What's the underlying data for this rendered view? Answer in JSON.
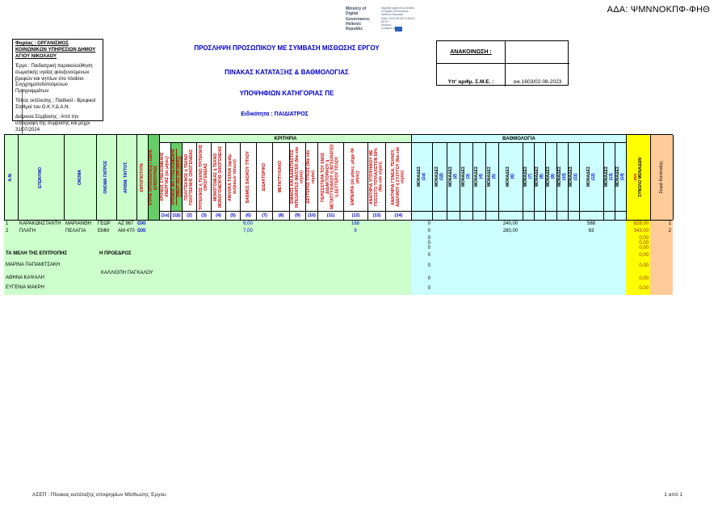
{
  "page": {
    "ada": "ΑΔΑ: ΨΜΝΝΟΚΠΦ-ΦΗΘ"
  },
  "signature": {
    "ministry": [
      "Ministry of Digital",
      "Governance,",
      "Hellenic Republic"
    ],
    "stamp": [
      "Digitally signed by Ministry",
      "of Digital Governance,",
      "Hellenic Republic",
      "Date: 2023.08.08 10:05:43",
      "EEST",
      "Reason:",
      "Location: Athens"
    ]
  },
  "info_box": {
    "heading": "Φορέας :  ΟΡΓΑΝΙΣΜΟΣ ΚΟΙΝΩΝΙΚΩΝ ΥΠΗΡΕΣΙΩΝ ΔΗΜΟΥ ΑΓΙΟΥ ΝΙΚΟΛΑΟΥ",
    "project": "Έργο : Παιδιατρική παρακολούθηση σωματικής υγείας φιλοξενούμενων βρεφών και νηπίων  στο πλαίσιο Συγχρηματοδοτούμενων Προγραμμάτων",
    "place": "Τόπος εκτέλεσης : Παιδικοί - Βρεφικοί Σταθμοί του Ο.Κ.Υ.Δ.Α.Ν.",
    "duration": "Διάρκεια Σύμβασης : Από την υπογραφή της σύμβασης και μέχρι 31/07/2024"
  },
  "titles": {
    "t1": "ΠΡΟΣΛΗΨΗ ΠΡΟΣΩΠΙΚΟΥ ΜΕ ΣΥΜΒΑΣΗ ΜΙΣΘΩΣΗΣ  ΕΡΓΟΥ",
    "t2": "ΠΙΝΑΚΑΣ ΚΑΤΑΤΑΞΗΣ & ΒΑΘΜΟΛΟΓΙΑΣ",
    "t3": "ΥΠΟΨΗΦΙΩΝ ΚΑΤΗΓΟΡΙΑΣ ΠΕ",
    "t4": "Ειδικότητα :  ΠΑΙΔΙΑΤΡΟΣ"
  },
  "announcement": {
    "label": "ΑΝΑΚΟΙΝΩΣΗ :",
    "sme_label": "Υπ' αριθμ. Σ.Μ.Ε. :",
    "sme_value": "οικ.1603/02-08-2023"
  },
  "table": {
    "section_criteria": "ΚΡΙΤΗΡΙΑ",
    "section_scoring": "ΒΑΘΜΟΛΟΓΙΑ",
    "left_columns": [
      {
        "label": "Α.Μ.",
        "red": false,
        "dark": false
      },
      {
        "label": "ΕΠΩΝΥΜΟ",
        "red": false,
        "dark": false
      },
      {
        "label": "ΟΝΟΜΑ",
        "red": false,
        "dark": false
      },
      {
        "label": "ΟΝΟΜΑ ΠΑΤΡΟΣ",
        "red": false,
        "dark": false
      },
      {
        "label": "ΑΡΙΘΜ. ΤΑΥΤΟΤ.",
        "red": false,
        "dark": false
      },
      {
        "label": "ΕΝΤΟΠΙΟΤΗΤΑ",
        "red": true,
        "dark": false
      },
      {
        "label": "ΚΥΡΙΑ ΠΡΟΣΟΝΤΑ(1) / ΣΕΙΡΑ ΕΠΙΚΟΥΡΙΑΣ",
        "red": true,
        "dark": true
      }
    ],
    "criteria_columns": [
      {
        "num": "(1α)",
        "label": "ΧΡΟΝΟΣ ΣΥΝΕΧΟΜΕΝΗΣ ΑΝΕΡΓΙΑΣ (σε μήνες)",
        "dark": false,
        "underline": false
      },
      {
        "num": "(1β)",
        "label": "ΧΡΟΝΟΣ ΜΗ ΣΥΝΕΧΟΜΕΝΗΣ ΑΝΕΡΓΙΑΣ (σε μήνες)",
        "dark": true,
        "underline": true
      },
      {
        "num": "(2)",
        "label": "ΠΟΛΥΤΕΚΝΟΣ ή ΤΕΚΝΟ ΠΟΛΥΤΕΚΝΗΣ ΟΙΚΟΓΕΝΕΙΑΣ",
        "dark": false,
        "underline": false
      },
      {
        "num": "(3)",
        "label": "ΤΡΙΤΕΚΝΟΣ ή ΤΕΚΝΟ ΤΡΙΤΕΚΝΗΣ ΟΙΚΟΓΕΝΕΙΑΣ",
        "dark": false,
        "underline": false
      },
      {
        "num": "(4)",
        "label": "ΜΟΝΟΓΟΝΕΑΣ ή ΤΕΚΝΟ ΜΟΝΟΓΟΝΕΪΚΗΣ ΟΙΚΟΓΕΝΕΙΑΣ",
        "dark": false,
        "underline": false
      },
      {
        "num": "(5)",
        "label": "ΑΝΗΛΙΚΑ ΤΕΚΝΑ (αριθμ. ανήλικων τέκνων)",
        "dark": false,
        "underline": false
      },
      {
        "num": "(6)",
        "label": "ΒΑΘΜΟΣ ΒΑΣΙΚΟΥ ΤΙΤΛΟΥ",
        "dark": false,
        "underline": false
      },
      {
        "num": "(7)",
        "label": "ΔΙΔΑΚΤΟΡΙΚΟ",
        "dark": false,
        "underline": false
      },
      {
        "num": "(8)",
        "label": "ΜΕΤΑΠΤΥΧΙΑΚΟ",
        "dark": false,
        "underline": false
      },
      {
        "num": "(9)",
        "label": "ΕΝΙΑΙΟΣ ΚΑΙ ΑΔΙΑΣΠΑΣΤΟΣ INTEGRATED MASTER (Ναι εάν ισχύει)",
        "dark": false,
        "underline": false
      },
      {
        "num": "(10)",
        "label": "ΔΕΥΤΕΡΟΣ ΤΙΤΛΟΣ (Ναι εάν ισχύει)",
        "dark": false,
        "underline": false
      },
      {
        "num": "(11)",
        "label": "ΠΕΡΙΣΣΟΤΕΡΑ ΤΟΥ ΕΝΟΣ ΔΙΔΑΚΤΟΡΙΚΟΥ ή ΜΕΤΑΠΤΥΧΙΑΚΟΥ ή INTEGRATED ή ΔΕΥΤΕΡΟΥ ΤΙΤΛΟΥ",
        "dark": false,
        "underline": false
      },
      {
        "num": "(12)",
        "label": "ΕΜΠΕΙΡΙΑ (σε μήνες, μέχρι 84 μήνες)",
        "dark": false,
        "underline": false
      },
      {
        "num": "(13)",
        "label": "ΑΝΑΠΗΡΙΑ ΥΠΟΨΗΦΙΟΥ ΜΕ ΠΟΣΟΣΤΟ ΤΟΥΛΑΧΙΣΤΟΝ 50% (Ναι εάν ισχύει)",
        "dark": false,
        "underline": false
      },
      {
        "num": "(14)",
        "label": "ΑΝΑΠΗΡΙΑ ΓΟΝΕΑ, ΤΕΚΝΟΥ, ΑΔΕΛΦΟΥ ή ΣΥΖΥΓΟΥ (Ναι εάν ισχύει)",
        "dark": false,
        "underline": false
      }
    ],
    "monades_label": "ΜΟΝΑΔΕΣ",
    "total_column": {
      "prefix": "συν",
      "label": "ΣΥΝΟΛΟ ΜΟΝΑΔΩΝ"
    },
    "rank_column": {
      "label": "Σειρά Κατάταξης"
    },
    "rows": [
      {
        "am": "1",
        "surname": "ΚΑΡΑΚΩΝΣΤΑΝΤΗ",
        "name": "ΜΑΡΙΑΝΘΗ",
        "father": "ΓΕΩΡ",
        "id_num": "ΑΖ 967",
        "locality": "ΟΧΙ",
        "c6": "6,00",
        "c12": "168",
        "m1a": "0",
        "m6": "240,00",
        "m12": "588",
        "total": "828,00",
        "rank": "1"
      },
      {
        "am": "2",
        "surname": "ΠΛΑΤΗ",
        "name": "ΠΕΛΑΓΙΑ",
        "father": "ΕΜΜ",
        "id_num": "ΑΜ 470",
        "locality": "ΟΧΙ",
        "c6": "7,00",
        "c12": "9",
        "m1a": "0",
        "m6": "280,00",
        "m12": "63",
        "total": "343,00",
        "rank": "2"
      }
    ],
    "filler_rows": [
      {
        "m1a": "0",
        "total": "0,00"
      },
      {
        "m1a": "0",
        "total": "0,00"
      },
      {
        "m1a": "0",
        "total": "0,00"
      },
      {
        "m1a": "0",
        "total": "0,00"
      },
      {
        "m1a": "0",
        "total": "0,00"
      },
      {
        "m1a": "0",
        "total": "0,00"
      },
      {
        "m1a": "0",
        "total": "0,00"
      }
    ],
    "committee": {
      "members_title": "ΤΑ ΜΕΛΗ ΤΗΣ ΕΠΙΤΡΟΠΗΣ",
      "president_title": "Η ΠΡΟΕΔΡΟΣ",
      "members": [
        "ΜΑΡΙΝΑ ΠΑΠΑΜΙΤΣΑΚΗ",
        "ΑΘΗΝΑ ΚΑΨΑΛΗ",
        "ΕΥΓΕΝΙΑ ΜΑΚΡΗ"
      ],
      "president": "ΚΑΛΛΙΟΠΗ ΠΑΓΚΑΛΟΥ"
    }
  },
  "footer": {
    "left": "ΑΣΕΠ : Πίνακας κατάταξης  υποψηφίων Μίσθωσης Έργου",
    "right": "1 από 1"
  },
  "colors": {
    "light_green": "#ccffcc",
    "dark_green": "#66cc66",
    "cyan": "#ccffff",
    "yellow": "#ffff00",
    "orange": "#ffcc99",
    "blue_text": "#0000cc",
    "red_text": "#cc0000",
    "total_text": "#993300"
  }
}
